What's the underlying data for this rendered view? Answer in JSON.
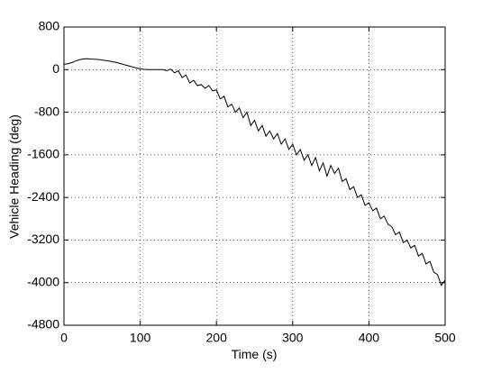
{
  "chart_data": {
    "type": "line",
    "xlabel": "Time (s)",
    "ylabel": "Vehicle Heading (deg)",
    "x": [
      0,
      5,
      10,
      15,
      20,
      25,
      30,
      35,
      40,
      45,
      50,
      55,
      60,
      65,
      70,
      75,
      80,
      85,
      90,
      95,
      100,
      105,
      110,
      115,
      120,
      125,
      130,
      135,
      140,
      145,
      150,
      155,
      160,
      165,
      170,
      175,
      180,
      185,
      190,
      195,
      200,
      205,
      210,
      215,
      220,
      225,
      230,
      235,
      240,
      245,
      250,
      255,
      260,
      265,
      270,
      275,
      280,
      285,
      290,
      295,
      300,
      305,
      310,
      315,
      320,
      325,
      330,
      335,
      340,
      345,
      350,
      355,
      360,
      365,
      370,
      375,
      380,
      385,
      390,
      395,
      400,
      405,
      410,
      415,
      420,
      425,
      430,
      435,
      440,
      445,
      450,
      455,
      460,
      465,
      470,
      475,
      480,
      485,
      490,
      495,
      500
    ],
    "series": [
      {
        "color": "#000000",
        "values": [
          100,
          110,
          130,
          160,
          185,
          200,
          205,
          200,
          195,
          190,
          180,
          170,
          160,
          145,
          130,
          110,
          90,
          70,
          50,
          30,
          15,
          5,
          0,
          0,
          0,
          0,
          0,
          -20,
          10,
          -60,
          -20,
          -150,
          -100,
          -250,
          -200,
          -300,
          -280,
          -350,
          -300,
          -400,
          -380,
          -550,
          -500,
          -700,
          -650,
          -800,
          -720,
          -900,
          -800,
          -1050,
          -950,
          -1150,
          -1050,
          -1250,
          -1150,
          -1300,
          -1200,
          -1400,
          -1300,
          -1500,
          -1400,
          -1600,
          -1500,
          -1700,
          -1600,
          -1800,
          -1650,
          -1900,
          -1750,
          -2000,
          -1800,
          -1950,
          -1850,
          -2100,
          -2050,
          -2250,
          -2200,
          -2400,
          -2350,
          -2550,
          -2500,
          -2650,
          -2600,
          -2800,
          -2750,
          -2900,
          -2950,
          -3100,
          -3050,
          -3250,
          -3200,
          -3350,
          -3300,
          -3500,
          -3450,
          -3650,
          -3600,
          -3800,
          -3850,
          -4050,
          -3950
        ]
      }
    ],
    "xlim": [
      0,
      500
    ],
    "xticks": [
      0,
      100,
      200,
      300,
      400,
      500
    ],
    "ylim": [
      -4800,
      800
    ],
    "yticks": [
      -4800,
      -4000,
      -3200,
      -2400,
      -1600,
      -800,
      0,
      800
    ],
    "grid": true
  }
}
